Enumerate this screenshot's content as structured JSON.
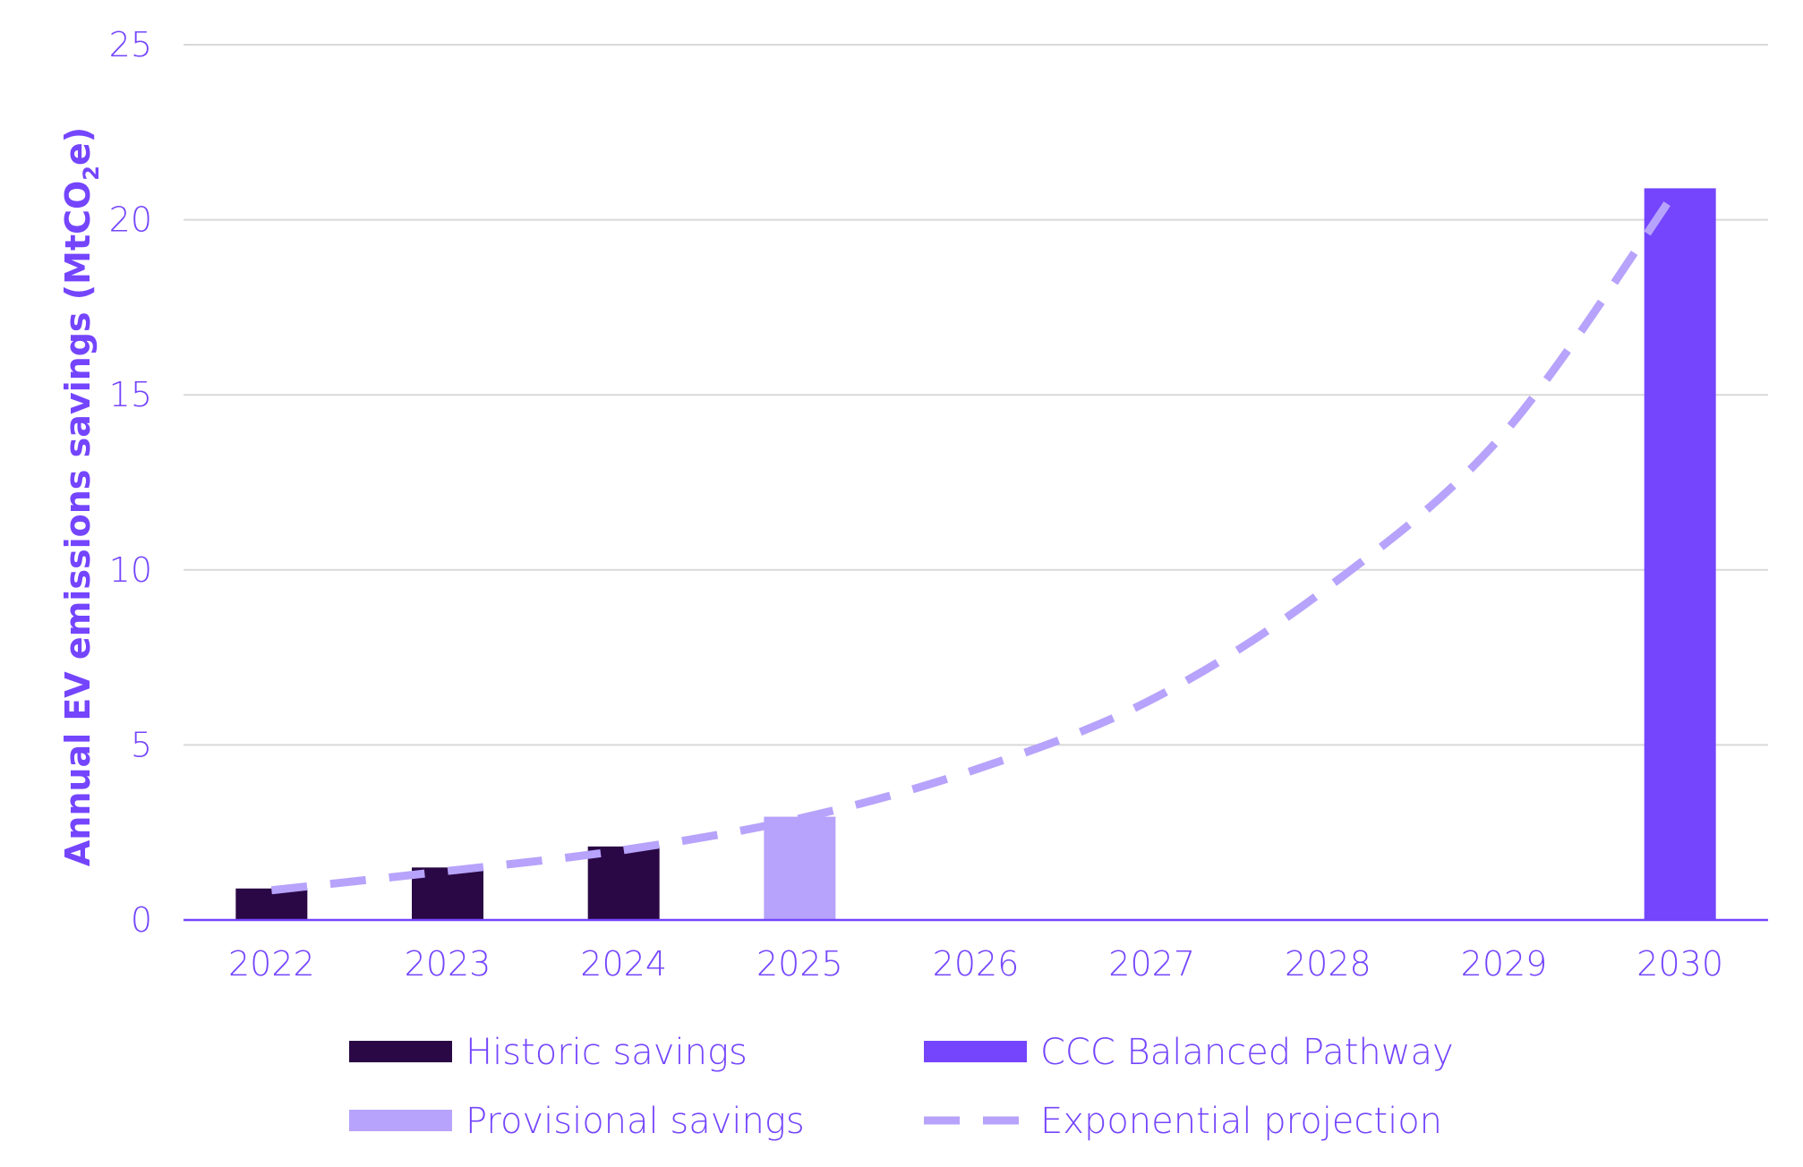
{
  "chart_data": {
    "type": "bar",
    "categories": [
      "2022",
      "2023",
      "2024",
      "2025",
      "2026",
      "2027",
      "2028",
      "2029",
      "2030"
    ],
    "ylabel_main": "Annual EV emissions savings (MtCO",
    "ylabel_sub": "2",
    "ylabel_end": "e)",
    "ylim": [
      0,
      25
    ],
    "yticks": [
      0,
      5,
      10,
      15,
      20,
      25
    ],
    "grid": true,
    "series": [
      {
        "name": "Historic savings",
        "kind": "bar",
        "color": "#2a0845",
        "values": [
          0.9,
          1.5,
          2.1,
          null,
          null,
          null,
          null,
          null,
          null
        ]
      },
      {
        "name": "Provisional savings",
        "kind": "bar",
        "color": "#b7a3fb",
        "values": [
          null,
          null,
          null,
          2.95,
          null,
          null,
          null,
          null,
          null
        ]
      },
      {
        "name": "CCC Balanced Pathway",
        "kind": "bar",
        "color": "#7445fd",
        "values": [
          null,
          null,
          null,
          null,
          null,
          null,
          null,
          null,
          20.9
        ]
      },
      {
        "name": "Exponential projection",
        "kind": "dashed-line",
        "color": "#b7a3fb",
        "values": [
          0.85,
          1.4,
          2.0,
          2.9,
          4.3,
          6.3,
          9.5,
          13.9,
          21.0
        ]
      }
    ],
    "legend": {
      "placement": "bottom",
      "entries": [
        "Historic savings",
        "CCC Balanced Pathway",
        "Provisional savings",
        "Exponential projection"
      ]
    },
    "colors": {
      "text": "#7445fd",
      "grid": "#d9d9d9",
      "axis": "#7445fd"
    }
  }
}
